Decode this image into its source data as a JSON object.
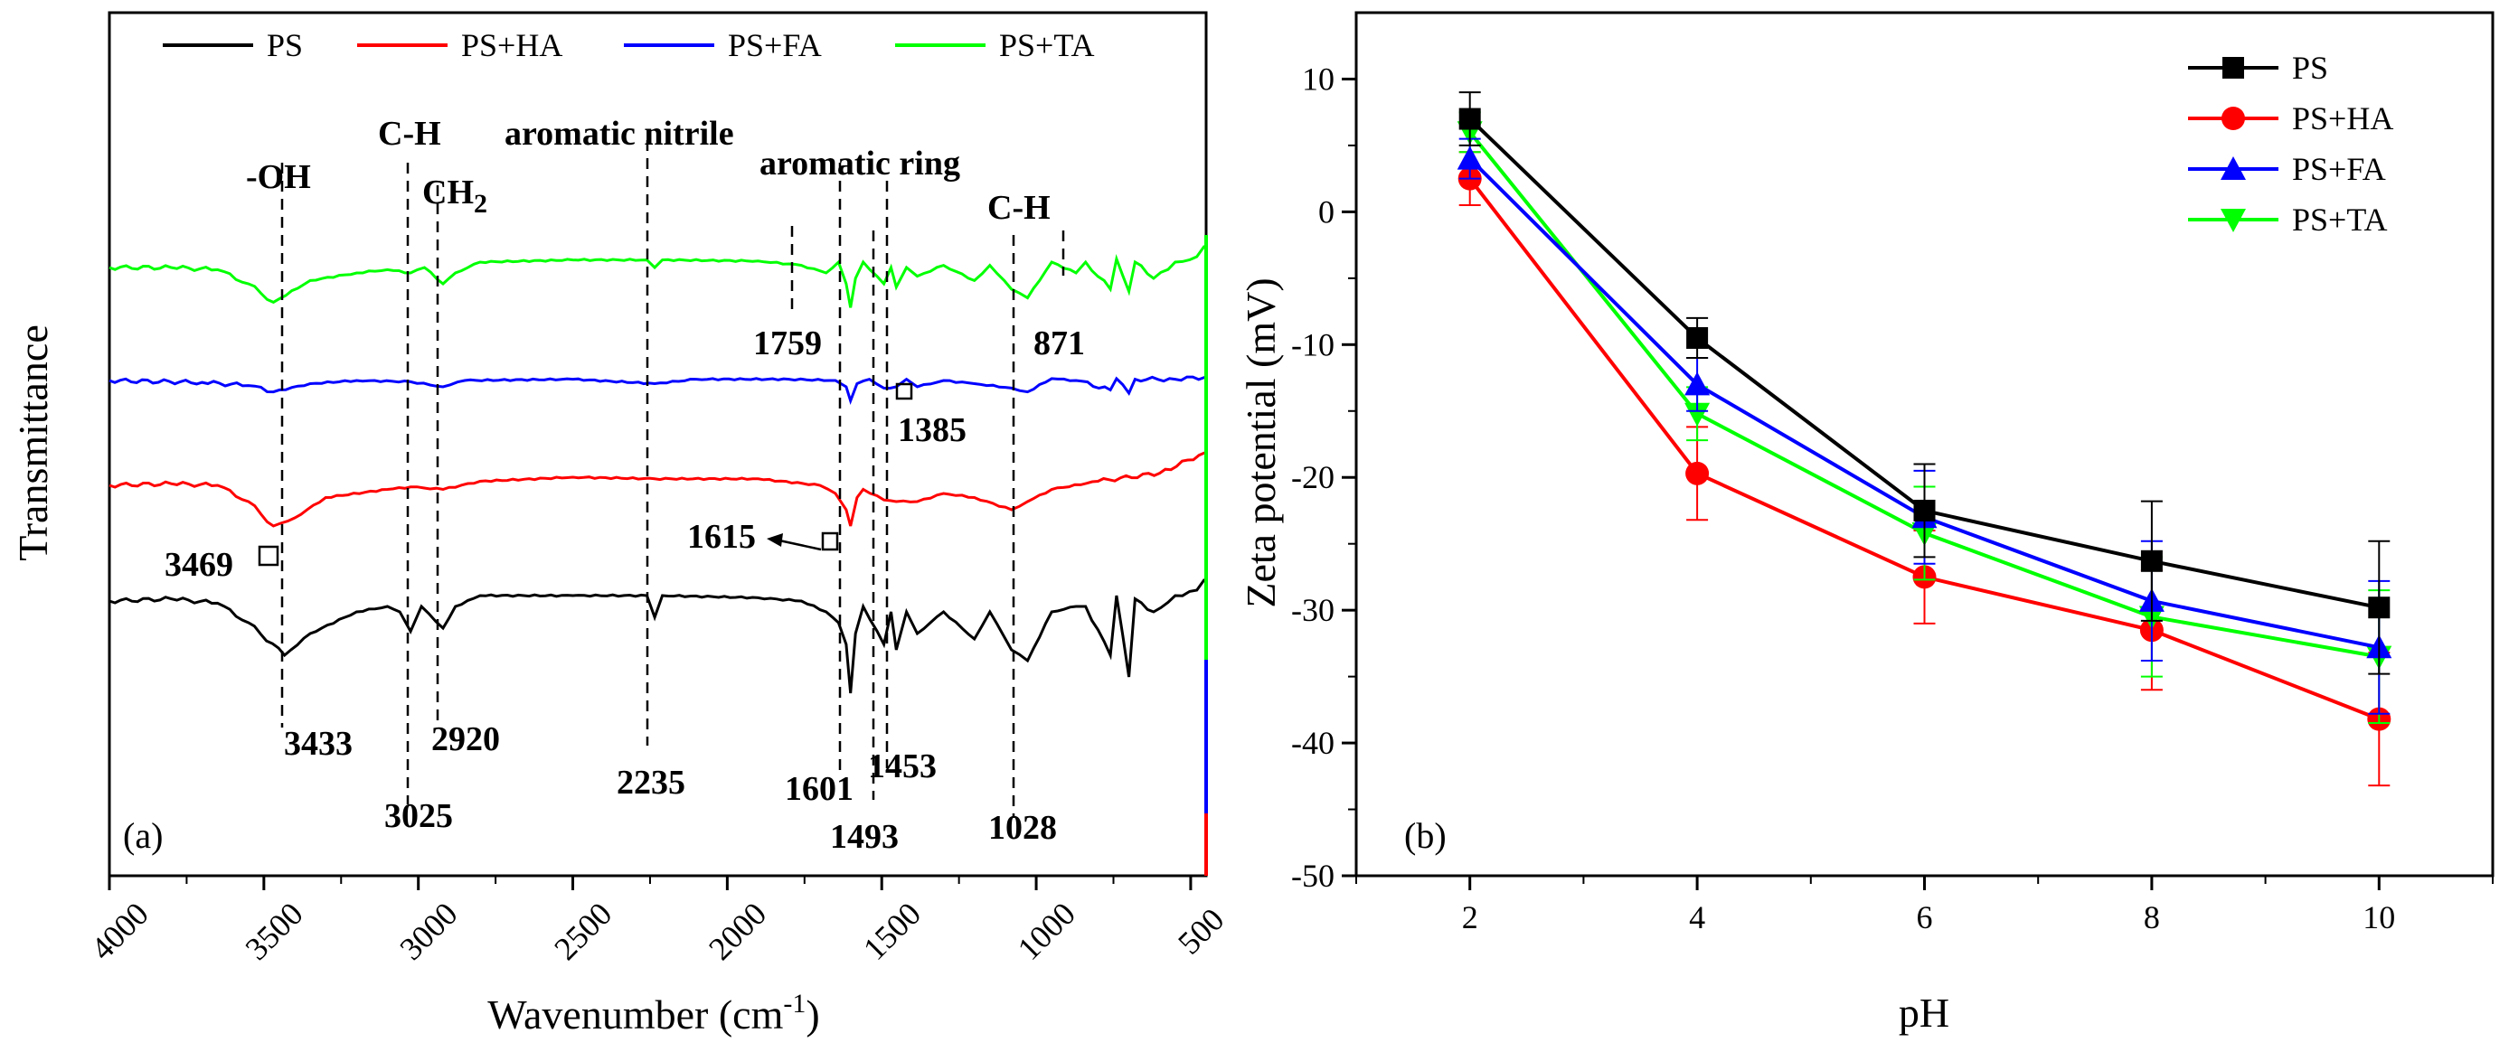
{
  "chart_data": [
    {
      "panel": "(a)",
      "type": "line",
      "title": "",
      "xlabel_main": "Wavenumber (cm",
      "xlabel_sup": "-1",
      "xlabel_close": ")",
      "ylabel": "Transmittance",
      "xlim": [
        4000,
        450
      ],
      "x_ticks": [
        4000,
        3500,
        3000,
        2500,
        2000,
        1500,
        1000,
        500
      ],
      "x_tick_labels": [
        "4000",
        "3500",
        "3000",
        "2500",
        "2000",
        "1500",
        "1000",
        "500"
      ],
      "legend": [
        {
          "name": "PS",
          "color": "#000000"
        },
        {
          "name": "PS+HA",
          "color": "#ff0000"
        },
        {
          "name": "PS+FA",
          "color": "#0000ff"
        },
        {
          "name": "PS+TA",
          "color": "#00ff00"
        }
      ],
      "series": [
        {
          "name": "PS+TA",
          "color": "#00ff00",
          "offset": 0.0,
          "points": [
            [
              4000,
              0.0
            ],
            [
              3800,
              0.0
            ],
            [
              3650,
              -0.02
            ],
            [
              3550,
              -0.15
            ],
            [
              3469,
              -0.32
            ],
            [
              3350,
              -0.12
            ],
            [
              3200,
              -0.05
            ],
            [
              3100,
              -0.02
            ],
            [
              3025,
              -0.05
            ],
            [
              2980,
              0.0
            ],
            [
              2920,
              -0.15
            ],
            [
              2880,
              -0.05
            ],
            [
              2800,
              0.05
            ],
            [
              2500,
              0.07
            ],
            [
              2260,
              0.07
            ],
            [
              2235,
              0.0
            ],
            [
              2210,
              0.07
            ],
            [
              1900,
              0.06
            ],
            [
              1760,
              0.02
            ],
            [
              1680,
              -0.05
            ],
            [
              1640,
              0.05
            ],
            [
              1615,
              -0.15
            ],
            [
              1601,
              -0.37
            ],
            [
              1585,
              -0.1
            ],
            [
              1560,
              0.05
            ],
            [
              1493,
              -0.15
            ],
            [
              1470,
              0.0
            ],
            [
              1453,
              -0.18
            ],
            [
              1420,
              0.0
            ],
            [
              1385,
              -0.08
            ],
            [
              1300,
              0.02
            ],
            [
              1200,
              -0.12
            ],
            [
              1150,
              0.02
            ],
            [
              1080,
              -0.2
            ],
            [
              1028,
              -0.28
            ],
            [
              950,
              0.05
            ],
            [
              871,
              -0.05
            ],
            [
              840,
              0.05
            ],
            [
              760,
              -0.2
            ],
            [
              740,
              0.08
            ],
            [
              700,
              -0.22
            ],
            [
              680,
              0.05
            ],
            [
              620,
              -0.1
            ],
            [
              550,
              0.05
            ],
            [
              480,
              0.1
            ],
            [
              455,
              0.2
            ]
          ]
        },
        {
          "name": "PS+FA",
          "color": "#0000ff",
          "offset": 0.0,
          "points": [
            [
              4000,
              0.0
            ],
            [
              3700,
              -0.03
            ],
            [
              3550,
              -0.08
            ],
            [
              3469,
              -0.18
            ],
            [
              3350,
              -0.05
            ],
            [
              3200,
              0.0
            ],
            [
              3025,
              -0.02
            ],
            [
              2920,
              -0.1
            ],
            [
              2850,
              0.0
            ],
            [
              2500,
              0.02
            ],
            [
              2235,
              -0.05
            ],
            [
              2100,
              0.02
            ],
            [
              1800,
              0.02
            ],
            [
              1650,
              0.0
            ],
            [
              1615,
              -0.1
            ],
            [
              1601,
              -0.32
            ],
            [
              1580,
              -0.05
            ],
            [
              1540,
              0.02
            ],
            [
              1493,
              -0.12
            ],
            [
              1453,
              -0.1
            ],
            [
              1420,
              0.02
            ],
            [
              1385,
              -0.1
            ],
            [
              1300,
              0.0
            ],
            [
              1200,
              -0.05
            ],
            [
              1080,
              -0.12
            ],
            [
              1028,
              -0.18
            ],
            [
              950,
              0.03
            ],
            [
              871,
              0.0
            ],
            [
              760,
              -0.15
            ],
            [
              740,
              0.03
            ],
            [
              700,
              -0.2
            ],
            [
              680,
              0.02
            ],
            [
              550,
              0.02
            ],
            [
              455,
              0.05
            ]
          ]
        },
        {
          "name": "PS+HA",
          "color": "#ff0000",
          "offset": 0.0,
          "points": [
            [
              4000,
              0.0
            ],
            [
              3800,
              0.02
            ],
            [
              3650,
              0.0
            ],
            [
              3550,
              -0.2
            ],
            [
              3469,
              -0.5
            ],
            [
              3400,
              -0.4
            ],
            [
              3300,
              -0.15
            ],
            [
              3100,
              -0.05
            ],
            [
              3025,
              -0.02
            ],
            [
              2920,
              -0.05
            ],
            [
              2800,
              0.05
            ],
            [
              2500,
              0.1
            ],
            [
              2235,
              0.08
            ],
            [
              1900,
              0.08
            ],
            [
              1700,
              0.0
            ],
            [
              1650,
              -0.1
            ],
            [
              1615,
              -0.3
            ],
            [
              1601,
              -0.5
            ],
            [
              1580,
              -0.15
            ],
            [
              1560,
              -0.05
            ],
            [
              1493,
              -0.18
            ],
            [
              1453,
              -0.2
            ],
            [
              1385,
              -0.2
            ],
            [
              1300,
              -0.1
            ],
            [
              1200,
              -0.15
            ],
            [
              1080,
              -0.3
            ],
            [
              1028,
              -0.2
            ],
            [
              950,
              -0.05
            ],
            [
              800,
              0.05
            ],
            [
              600,
              0.15
            ],
            [
              455,
              0.4
            ]
          ]
        },
        {
          "name": "PS",
          "color": "#000000",
          "offset": 0.0,
          "points": [
            [
              4000,
              0.0
            ],
            [
              3800,
              0.02
            ],
            [
              3650,
              -0.02
            ],
            [
              3550,
              -0.2
            ],
            [
              3433,
              -0.5
            ],
            [
              3350,
              -0.3
            ],
            [
              3200,
              -0.1
            ],
            [
              3100,
              -0.05
            ],
            [
              3060,
              -0.1
            ],
            [
              3025,
              -0.28
            ],
            [
              2990,
              -0.05
            ],
            [
              2920,
              -0.25
            ],
            [
              2880,
              -0.05
            ],
            [
              2800,
              0.05
            ],
            [
              2500,
              0.05
            ],
            [
              2260,
              0.05
            ],
            [
              2235,
              -0.15
            ],
            [
              2210,
              0.05
            ],
            [
              1900,
              0.03
            ],
            [
              1760,
              0.0
            ],
            [
              1680,
              -0.1
            ],
            [
              1640,
              -0.2
            ],
            [
              1615,
              -0.4
            ],
            [
              1601,
              -0.85
            ],
            [
              1585,
              -0.3
            ],
            [
              1560,
              -0.05
            ],
            [
              1493,
              -0.4
            ],
            [
              1470,
              -0.1
            ],
            [
              1453,
              -0.45
            ],
            [
              1420,
              -0.1
            ],
            [
              1385,
              -0.3
            ],
            [
              1300,
              -0.1
            ],
            [
              1200,
              -0.35
            ],
            [
              1150,
              -0.1
            ],
            [
              1080,
              -0.45
            ],
            [
              1028,
              -0.55
            ],
            [
              950,
              -0.1
            ],
            [
              871,
              -0.05
            ],
            [
              840,
              -0.05
            ],
            [
              760,
              -0.5
            ],
            [
              740,
              0.05
            ],
            [
              700,
              -0.7
            ],
            [
              680,
              0.02
            ],
            [
              620,
              -0.1
            ],
            [
              550,
              0.05
            ],
            [
              480,
              0.1
            ],
            [
              455,
              0.2
            ]
          ]
        }
      ],
      "annotations_top": [
        {
          "text": "-OH",
          "x": 3469
        },
        {
          "text": "C-H",
          "x": 3025
        },
        {
          "text": "CH",
          "sub": "2",
          "x": 2920
        },
        {
          "text": "aromatic nitrile",
          "x": 2235
        },
        {
          "text": "aromatic ring",
          "x": 1540
        },
        {
          "text": "C-H",
          "x": 1028
        }
      ],
      "peak_labels": [
        "3433",
        "3469",
        "3025",
        "2920",
        "2235",
        "1759",
        "1615",
        "1601",
        "1493",
        "1453",
        "1385",
        "1028",
        "871"
      ]
    },
    {
      "panel": "(b)",
      "type": "line",
      "title": "",
      "xlabel": "pH",
      "ylabel": "Zeta potential (mV)",
      "xlim": [
        1,
        11
      ],
      "ylim": [
        -50,
        15
      ],
      "x_ticks": [
        2,
        4,
        6,
        8,
        10
      ],
      "x_tick_labels": [
        "2",
        "4",
        "6",
        "8",
        "10"
      ],
      "y_ticks": [
        10,
        0,
        -10,
        -20,
        -30,
        -40,
        -50
      ],
      "y_tick_labels": [
        "10",
        "0",
        "-10",
        "-20",
        "-30",
        "-40",
        "-50"
      ],
      "x": [
        2,
        4,
        6,
        8,
        10
      ],
      "series": [
        {
          "name": "PS",
          "color": "#000000",
          "marker": "square",
          "values": [
            7.0,
            -9.5,
            -22.5,
            -26.3,
            -29.8
          ],
          "err": [
            2.0,
            1.5,
            3.5,
            4.5,
            5.0
          ]
        },
        {
          "name": "PS+HA",
          "color": "#ff0000",
          "marker": "circle",
          "values": [
            2.5,
            -19.7,
            -27.5,
            -31.5,
            -38.2
          ],
          "err": [
            2.0,
            3.5,
            3.5,
            4.5,
            5.0
          ]
        },
        {
          "name": "PS+FA",
          "color": "#0000ff",
          "marker": "triangle-up",
          "values": [
            4.0,
            -13.0,
            -23.0,
            -29.3,
            -32.8
          ],
          "err": [
            1.5,
            2.0,
            3.5,
            4.5,
            5.0
          ]
        },
        {
          "name": "PS+TA",
          "color": "#00ff00",
          "marker": "triangle-down",
          "values": [
            6.0,
            -15.2,
            -24.2,
            -30.5,
            -33.5
          ],
          "err": [
            1.5,
            2.0,
            3.5,
            4.5,
            5.0
          ]
        }
      ]
    }
  ]
}
